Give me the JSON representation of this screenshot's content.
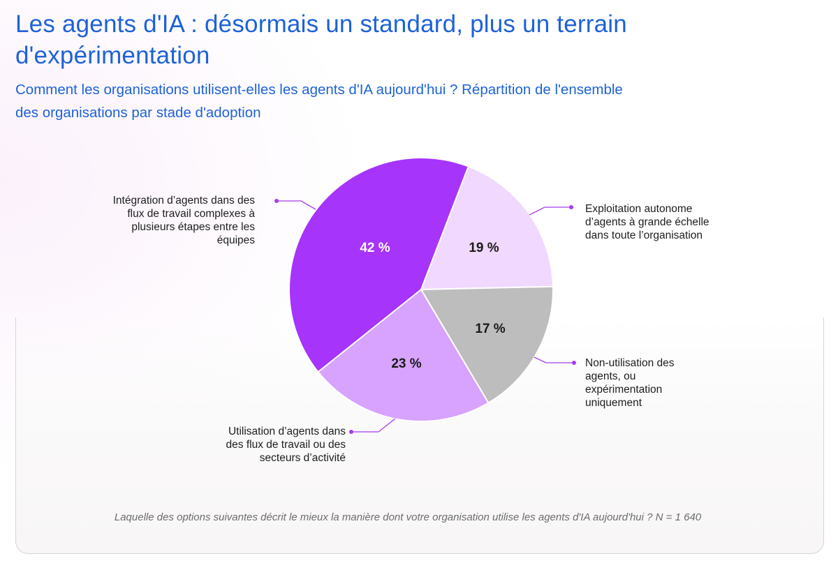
{
  "title": "Les agents d'IA : désormais un standard, plus un terrain d'expérimentation",
  "subtitle": "Comment les organisations utilisent-elles les agents d'IA aujourd'hui ? Répartition de l'ensemble des organisations par stade d'adoption",
  "footnote": "Laquelle des options suivantes décrit le mieux la manière dont votre organisation utilise les agents d'IA aujourd'hui ? N = 1 640",
  "colors": {
    "title": "#1d62d6",
    "leader": "#a53bf0"
  },
  "chart_data": {
    "type": "pie",
    "slices": [
      {
        "label": "Exploitation autonome d’agents à grande échelle dans toute l’organisation",
        "value": 19,
        "value_label": "19 %",
        "color": "#f0d8ff"
      },
      {
        "label": "Non-utilisation des agents, ou expérimentation uniquement",
        "value": 17,
        "value_label": "17 %",
        "color": "#bdbdbd"
      },
      {
        "label": "Utilisation d’agents dans des flux de travail ou des secteurs d’activité",
        "value": 23,
        "value_label": "23 %",
        "color": "#d8a3ff"
      },
      {
        "label": "Intégration d’agents dans des flux de travail complexes à plusieurs étapes entre les équipes",
        "value": 42,
        "value_label": "42 %",
        "color": "#a734fa"
      }
    ]
  }
}
